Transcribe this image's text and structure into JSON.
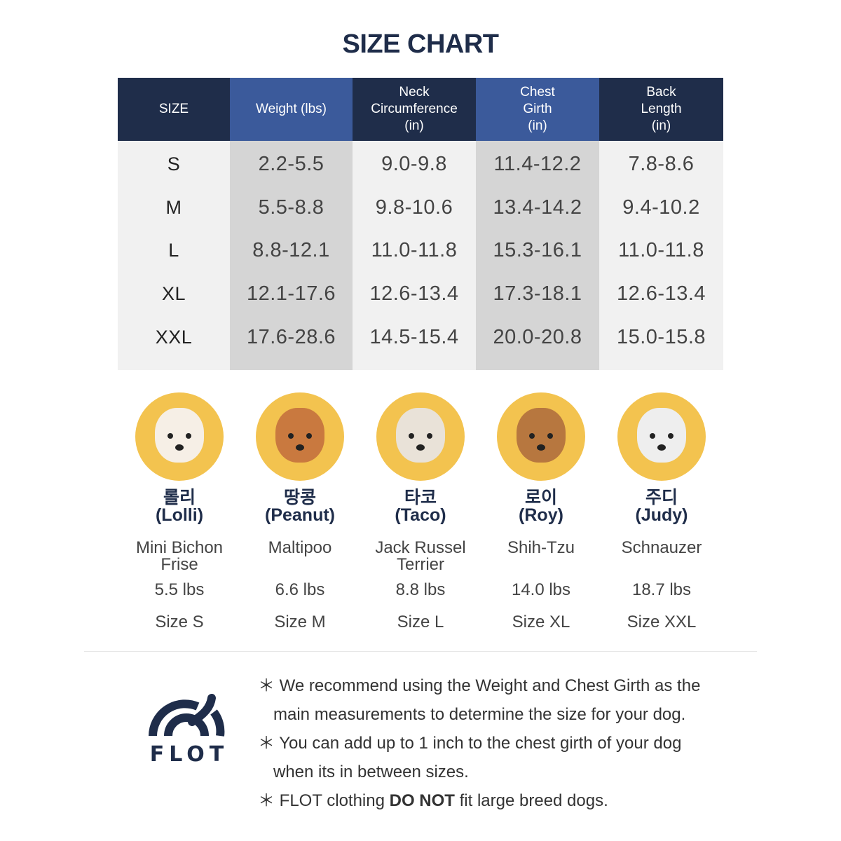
{
  "title": "SIZE CHART",
  "table": {
    "headers": [
      "SIZE",
      "Weight (lbs)",
      "Neck\nCircumference\n(in)",
      "Chest\nGirth\n(in)",
      "Back\nLength\n(in)"
    ],
    "rows": [
      [
        "S",
        "2.2-5.5",
        "9.0-9.8",
        "11.4-12.2",
        "7.8-8.6"
      ],
      [
        "M",
        "5.5-8.8",
        "9.8-10.6",
        "13.4-14.2",
        "9.4-10.2"
      ],
      [
        "L",
        "8.8-12.1",
        "11.0-11.8",
        "15.3-16.1",
        "11.0-11.8"
      ],
      [
        "XL",
        "12.1-17.6",
        "12.6-13.4",
        "17.3-18.1",
        "12.6-13.4"
      ],
      [
        "XXL",
        "17.6-28.6",
        "14.5-15.4",
        "20.0-20.8",
        "15.0-15.8"
      ]
    ]
  },
  "colors": {
    "header_dark": "#1f2d4a",
    "header_blue": "#3b5a9b",
    "col_light": "#f1f1f1",
    "col_gray": "#d5d5d5",
    "photo_bg": "#f3c34f"
  },
  "dogs": [
    {
      "korean": "롤리",
      "name": "(Lolli)",
      "breed": "Mini Bichon Frise",
      "weight": "5.5 lbs",
      "size": "Size S",
      "fur": "#f6efe6"
    },
    {
      "korean": "땅콩",
      "name": "(Peanut)",
      "breed": "Maltipoo",
      "weight": "6.6 lbs",
      "size": "Size M",
      "fur": "#c9793f"
    },
    {
      "korean": "타코",
      "name": "(Taco)",
      "breed": "Jack Russel Terrier",
      "weight": "8.8 lbs",
      "size": "Size L",
      "fur": "#e9e2d8"
    },
    {
      "korean": "로이",
      "name": "(Roy)",
      "breed": "Shih-Tzu",
      "weight": "14.0 lbs",
      "size": "Size XL",
      "fur": "#b7773f"
    },
    {
      "korean": "주디",
      "name": "(Judy)",
      "breed": "Schnauzer",
      "weight": "18.7 lbs",
      "size": "Size XXL",
      "fur": "#eeeeee"
    }
  ],
  "logo": {
    "text": "FLOT"
  },
  "notes": {
    "n1a": "＊ We recommend using the Weight and Chest Girth as the",
    "n1b": "main measurements to determine the size for your dog.",
    "n2a": "＊ You can add up to 1 inch to the chest girth of your dog",
    "n2b": "when its in between sizes.",
    "n3a": "＊ FLOT clothing ",
    "n3bold": "DO NOT",
    "n3b": " fit large breed dogs."
  }
}
